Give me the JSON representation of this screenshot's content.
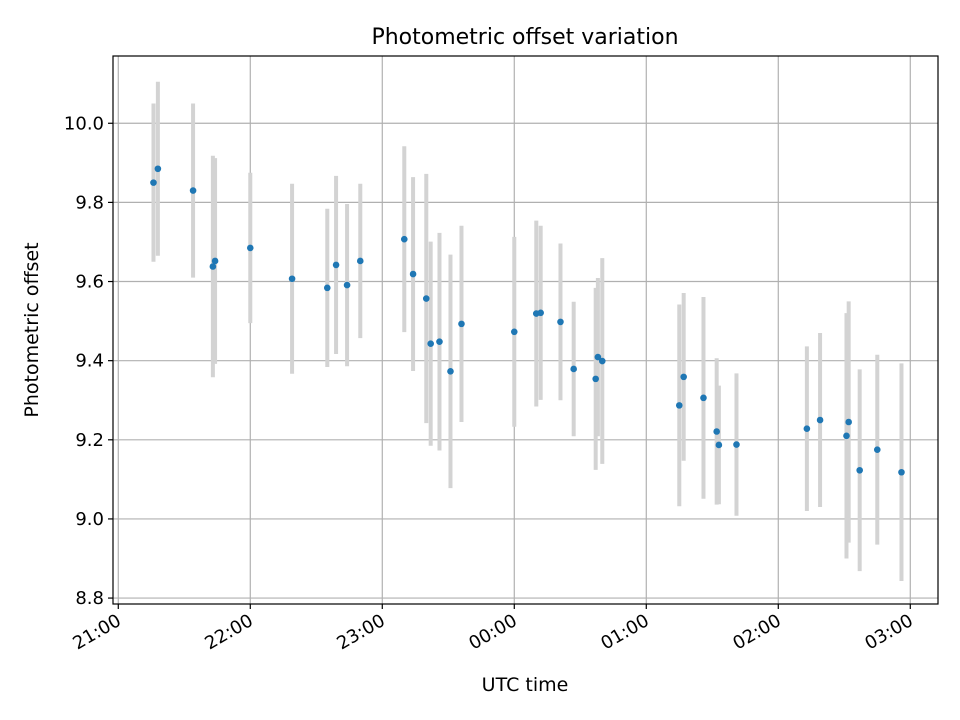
{
  "chart_data": {
    "type": "scatter",
    "title": "Photometric offset variation",
    "xlabel": "UTC time",
    "ylabel": "Photometric offset",
    "xlim_hours": [
      20.96,
      27.21
    ],
    "ylim": [
      8.785,
      10.17
    ],
    "grid": true,
    "legend": "none",
    "x_ticks": [
      {
        "hour": 21,
        "label": "21:00"
      },
      {
        "hour": 22,
        "label": "22:00"
      },
      {
        "hour": 23,
        "label": "23:00"
      },
      {
        "hour": 24,
        "label": "00:00"
      },
      {
        "hour": 25,
        "label": "01:00"
      },
      {
        "hour": 26,
        "label": "02:00"
      },
      {
        "hour": 27,
        "label": "03:00"
      }
    ],
    "y_ticks": [
      {
        "value": 8.8,
        "label": "8.8"
      },
      {
        "value": 9.0,
        "label": "9.0"
      },
      {
        "value": 9.2,
        "label": "9.2"
      },
      {
        "value": 9.4,
        "label": "9.4"
      },
      {
        "value": 9.6,
        "label": "9.6"
      },
      {
        "value": 9.8,
        "label": "9.8"
      },
      {
        "value": 10.0,
        "label": "10.0"
      }
    ],
    "colors": {
      "point": "#1f77b4",
      "errorbar": "#d3d3d3",
      "grid": "#b0b0b0"
    },
    "points": [
      {
        "time": "21:16",
        "y": 9.85,
        "err": 0.2
      },
      {
        "time": "21:18",
        "y": 9.885,
        "err": 0.22
      },
      {
        "time": "21:34",
        "y": 9.83,
        "err": 0.22
      },
      {
        "time": "21:43",
        "y": 9.638,
        "err": 0.28
      },
      {
        "time": "21:44",
        "y": 9.652,
        "err": 0.26
      },
      {
        "time": "22:00",
        "y": 9.685,
        "err": 0.19
      },
      {
        "time": "22:19",
        "y": 9.607,
        "err": 0.24
      },
      {
        "time": "22:35",
        "y": 9.584,
        "err": 0.2
      },
      {
        "time": "22:39",
        "y": 9.642,
        "err": 0.225
      },
      {
        "time": "22:44",
        "y": 9.591,
        "err": 0.205
      },
      {
        "time": "22:50",
        "y": 9.652,
        "err": 0.195
      },
      {
        "time": "23:10",
        "y": 9.707,
        "err": 0.235
      },
      {
        "time": "23:14",
        "y": 9.619,
        "err": 0.245
      },
      {
        "time": "23:20",
        "y": 9.557,
        "err": 0.315
      },
      {
        "time": "23:22",
        "y": 9.443,
        "err": 0.258
      },
      {
        "time": "23:26",
        "y": 9.448,
        "err": 0.275
      },
      {
        "time": "23:31",
        "y": 9.373,
        "err": 0.295
      },
      {
        "time": "23:36",
        "y": 9.493,
        "err": 0.248
      },
      {
        "time": "00:00",
        "y": 9.473,
        "err": 0.24
      },
      {
        "time": "00:10",
        "y": 9.519,
        "err": 0.235
      },
      {
        "time": "00:12",
        "y": 9.521,
        "err": 0.22
      },
      {
        "time": "00:21",
        "y": 9.498,
        "err": 0.198
      },
      {
        "time": "00:27",
        "y": 9.379,
        "err": 0.17
      },
      {
        "time": "00:37",
        "y": 9.354,
        "err": 0.23
      },
      {
        "time": "00:38",
        "y": 9.409,
        "err": 0.2
      },
      {
        "time": "00:40",
        "y": 9.399,
        "err": 0.26
      },
      {
        "time": "01:15",
        "y": 9.287,
        "err": 0.255
      },
      {
        "time": "01:17",
        "y": 9.359,
        "err": 0.212
      },
      {
        "time": "01:26",
        "y": 9.306,
        "err": 0.255
      },
      {
        "time": "01:32",
        "y": 9.221,
        "err": 0.185
      },
      {
        "time": "01:33",
        "y": 9.187,
        "err": 0.15
      },
      {
        "time": "01:41",
        "y": 9.188,
        "err": 0.18
      },
      {
        "time": "02:13",
        "y": 9.228,
        "err": 0.208
      },
      {
        "time": "02:19",
        "y": 9.25,
        "err": 0.22
      },
      {
        "time": "02:31",
        "y": 9.21,
        "err": 0.31
      },
      {
        "time": "02:32",
        "y": 9.245,
        "err": 0.305
      },
      {
        "time": "02:37",
        "y": 9.123,
        "err": 0.255
      },
      {
        "time": "02:45",
        "y": 9.175,
        "err": 0.24
      },
      {
        "time": "02:56",
        "y": 9.118,
        "err": 0.275
      }
    ]
  }
}
